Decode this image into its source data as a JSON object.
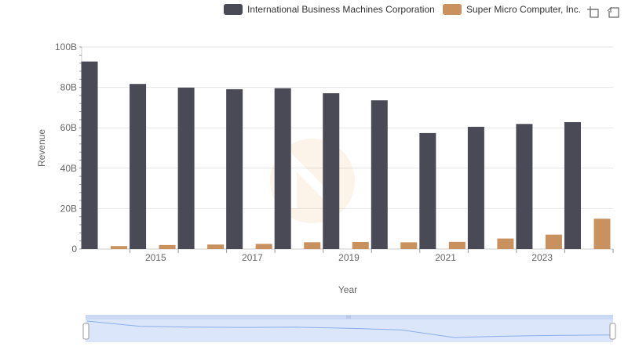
{
  "chart_data": {
    "type": "bar",
    "title": "",
    "xlabel": "Year",
    "ylabel": "Revenue",
    "ylim": [
      0,
      100000000000
    ],
    "y_ticks": [
      {
        "value": 0,
        "label": "0"
      },
      {
        "value": 20000000000,
        "label": "20B"
      },
      {
        "value": 40000000000,
        "label": "40B"
      },
      {
        "value": 60000000000,
        "label": "60B"
      },
      {
        "value": 80000000000,
        "label": "80B"
      },
      {
        "value": 100000000000,
        "label": "100B"
      }
    ],
    "categories": [
      "2014",
      "2015",
      "2016",
      "2017",
      "2018",
      "2019",
      "2020",
      "2021",
      "2022",
      "2023",
      "2024"
    ],
    "x_tick_labels": [
      "2015",
      "2017",
      "2019",
      "2021",
      "2023"
    ],
    "series": [
      {
        "name": "International Business Machines Corporation",
        "color": "#4a4956",
        "values": [
          92800000000,
          81700000000,
          79900000000,
          79100000000,
          79600000000,
          77100000000,
          73600000000,
          57400000000,
          60500000000,
          61900000000,
          62800000000
        ]
      },
      {
        "name": "Super Micro Computer, Inc.",
        "color": "#c8915e",
        "values": [
          1470000000,
          1990000000,
          2220000000,
          2530000000,
          3360000000,
          3500000000,
          3340000000,
          3560000000,
          5200000000,
          7120000000,
          14990000000
        ]
      }
    ],
    "legend_position": "top-right",
    "grid": true
  },
  "toolbar": {
    "zoom_icon": "zoom-icon",
    "reset_icon": "restore-icon"
  },
  "navigator": {
    "fill_color": "#dbe6fb",
    "line_color": "#8aaee8"
  }
}
